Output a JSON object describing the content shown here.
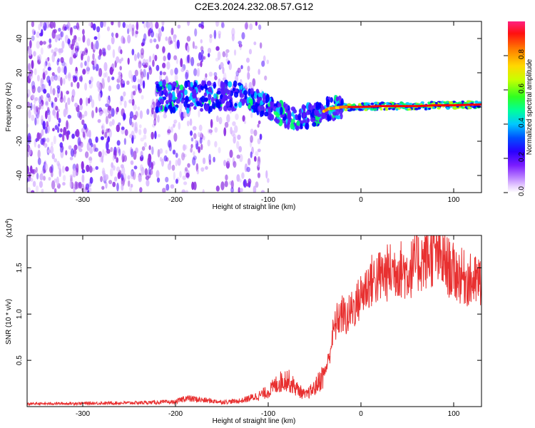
{
  "title": "C2E3.2024.232.08.57.G12",
  "chart_data": [
    {
      "type": "heatmap",
      "xlabel": "Height of straight line (km)",
      "ylabel": "Frequency (Hz)",
      "xlim": [
        -360,
        130
      ],
      "ylim": [
        -50,
        50
      ],
      "xticks": [
        -300,
        -200,
        -100,
        0,
        100
      ],
      "yticks": [
        -40,
        -20,
        0,
        20,
        40
      ],
      "colorbar": {
        "label": "Normalized spectral amplitude",
        "range": [
          0,
          1
        ],
        "ticks": [
          0.0,
          0.2,
          0.4,
          0.6,
          0.8
        ],
        "colors": [
          "#ffffff",
          "#d7b4ff",
          "#8a2be2",
          "#5a1aff",
          "#0000ff",
          "#00c8ff",
          "#00ff66",
          "#b4ff00",
          "#ffdc00",
          "#ff7800",
          "#ff0000",
          "#ff1e78"
        ]
      },
      "ridge": [
        {
          "x": -130,
          "y": 6
        },
        {
          "x": -110,
          "y": 3
        },
        {
          "x": -90,
          "y": -3
        },
        {
          "x": -70,
          "y": -7
        },
        {
          "x": -55,
          "y": -5
        },
        {
          "x": -45,
          "y": -4
        },
        {
          "x": -35,
          "y": -1
        },
        {
          "x": -20,
          "y": 0
        },
        {
          "x": 0,
          "y": 0
        },
        {
          "x": 20,
          "y": 0.5
        },
        {
          "x": 40,
          "y": 0.5
        },
        {
          "x": 60,
          "y": 0.5
        },
        {
          "x": 80,
          "y": 1
        },
        {
          "x": 100,
          "y": 1
        },
        {
          "x": 130,
          "y": 1.5
        }
      ],
      "noise_extent": [
        -360,
        -130
      ],
      "grid": false
    },
    {
      "type": "line",
      "xlabel": "Height of straight line (km)",
      "ylabel": "SNR (10 * v/v)",
      "scale_label": "(x10",
      "scale_exponent": "4",
      "xlim": [
        -360,
        130
      ],
      "ylim": [
        0,
        1.85
      ],
      "xticks": [
        -300,
        -200,
        -100,
        0,
        100
      ],
      "yticks": [
        0.5,
        1.0,
        1.5
      ],
      "ytick_labels": [
        "0.5",
        "1.0",
        "1.5"
      ],
      "color": "#e83030",
      "grid": false,
      "series": [
        {
          "x": [
            -360,
            -300,
            -250,
            -200,
            -190,
            -150,
            -130,
            -110,
            -100,
            -90,
            -80,
            -70,
            -60,
            -50,
            -40,
            -35,
            -30,
            -25,
            -20,
            -15,
            -10,
            -5,
            0,
            10,
            20,
            30,
            40,
            50,
            60,
            70,
            80,
            90,
            100,
            110,
            120,
            130
          ],
          "y": [
            0.03,
            0.035,
            0.04,
            0.05,
            0.09,
            0.05,
            0.06,
            0.12,
            0.16,
            0.25,
            0.3,
            0.2,
            0.12,
            0.2,
            0.35,
            0.5,
            0.8,
            0.95,
            1.0,
            0.95,
            1.05,
            1.1,
            1.2,
            1.35,
            1.4,
            1.45,
            1.5,
            1.45,
            1.55,
            1.6,
            1.65,
            1.55,
            1.45,
            1.4,
            1.35,
            1.35
          ]
        }
      ]
    }
  ]
}
